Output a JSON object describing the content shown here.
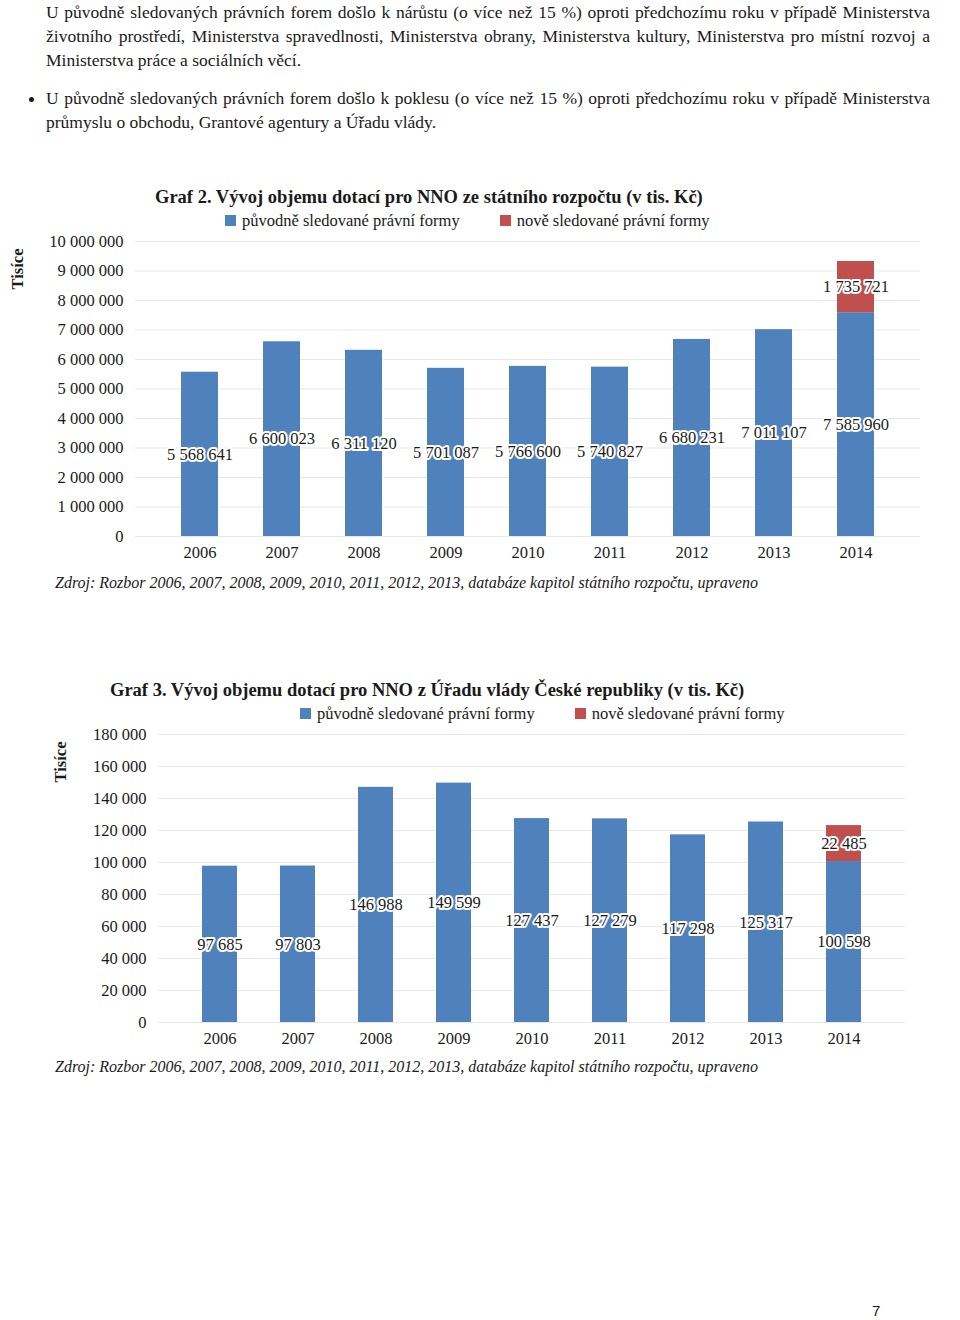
{
  "text": {
    "paragraphs": [
      "U původně sledovaných právních forem došlo k nárůstu (o více než 15 %) oproti předchozímu roku v případě Ministerstva životního prostředí, Ministerstva spravedlnosti, Ministerstva obrany, Ministerstva kultury, Ministerstva pro místní rozvoj a Ministerstva práce a sociálních věcí.",
      "U původně sledovaných právních forem došlo k poklesu (o více než 15 %) oproti předchozímu roku v případě Ministerstva průmyslu o obchodu, Grantové agentury a Úřadu vlády."
    ],
    "page_number": "7"
  },
  "chart_data": [
    {
      "type": "bar",
      "title": "Graf 2. Vývoj objemu dotací pro NNO ze státního rozpočtu (v tis. Kč)",
      "caption": "Zdroj: Rozbor 2006, 2007, 2008, 2009, 2010, 2011, 2012, 2013, databáze kapitol státního rozpočtu, upraveno",
      "y_label": "Tisíce",
      "stacked": true,
      "data_labels": true,
      "grid": true,
      "legend": "top",
      "categories": [
        "2006",
        "2007",
        "2008",
        "2009",
        "2010",
        "2011",
        "2012",
        "2013",
        "2014"
      ],
      "series": [
        {
          "name": "původně sledované právní formy",
          "color": "#4f81bd",
          "values": [
            5568641,
            6600023,
            6311120,
            5701087,
            5766600,
            5740827,
            6680231,
            7011107,
            7585960
          ],
          "value_labels": [
            "5 568 641",
            "6 600 023",
            "6 311 120",
            "5 701 087",
            "5 766 600",
            "5 740 827",
            "6 680 231",
            "7 011 107",
            "7 585 960"
          ]
        },
        {
          "name": "nově sledované právní formy",
          "color": "#c0504d",
          "values": [
            null,
            null,
            null,
            null,
            null,
            null,
            null,
            null,
            1735721
          ],
          "value_labels": [
            null,
            null,
            null,
            null,
            null,
            null,
            null,
            null,
            "1 735 721"
          ]
        }
      ],
      "ylim": [
        0,
        10000000
      ],
      "yticks": [
        0,
        {
          "value": 1000000,
          "label": "1 000 000"
        },
        {
          "value": 2000000,
          "label": "2 000 000"
        },
        {
          "value": 3000000,
          "label": "3 000 000"
        },
        {
          "value": 4000000,
          "label": "4 000 000"
        },
        {
          "value": 5000000,
          "label": "5 000 000"
        },
        {
          "value": 6000000,
          "label": "6 000 000"
        },
        {
          "value": 7000000,
          "label": "7 000 000"
        },
        {
          "value": 8000000,
          "label": "8 000 000"
        },
        {
          "value": 9000000,
          "label": "9 000 000"
        },
        {
          "value": 10000000,
          "label": "10 000 000"
        }
      ]
    },
    {
      "type": "bar",
      "title": "Graf 3. Vývoj objemu dotací pro NNO z Úřadu vlády České republiky (v tis. Kč)",
      "caption": "Zdroj: Rozbor 2006, 2007, 2008, 2009, 2010, 2011, 2012, 2013, databáze kapitol státního rozpočtu, upraveno",
      "y_label": "Tisíce",
      "stacked": true,
      "data_labels": true,
      "grid": true,
      "legend": "top",
      "categories": [
        "2006",
        "2007",
        "2008",
        "2009",
        "2010",
        "2011",
        "2012",
        "2013",
        "2014"
      ],
      "series": [
        {
          "name": "původně sledované právní formy",
          "color": "#4f81bd",
          "values": [
            97685,
            97803,
            146988,
            149599,
            127437,
            127279,
            117298,
            125317,
            100598
          ],
          "value_labels": [
            "97 685",
            "97 803",
            "146 988",
            "149 599",
            "127 437",
            "127 279",
            "117 298",
            "125 317",
            "100 598"
          ]
        },
        {
          "name": "nově sledované právní formy",
          "color": "#c0504d",
          "values": [
            null,
            null,
            null,
            null,
            null,
            null,
            null,
            null,
            22485
          ],
          "value_labels": [
            null,
            null,
            null,
            null,
            null,
            null,
            null,
            null,
            "22 485"
          ]
        }
      ],
      "ylim": [
        0,
        180000
      ],
      "yticks": [
        0,
        {
          "value": 20000,
          "label": "20 000"
        },
        {
          "value": 40000,
          "label": "40 000"
        },
        {
          "value": 60000,
          "label": "60 000"
        },
        {
          "value": 80000,
          "label": "80 000"
        },
        {
          "value": 100000,
          "label": "100 000"
        },
        {
          "value": 120000,
          "label": "120 000"
        },
        {
          "value": 140000,
          "label": "140 000"
        },
        {
          "value": 160000,
          "label": "160 000"
        },
        {
          "value": 180000,
          "label": "180 000"
        }
      ]
    }
  ]
}
